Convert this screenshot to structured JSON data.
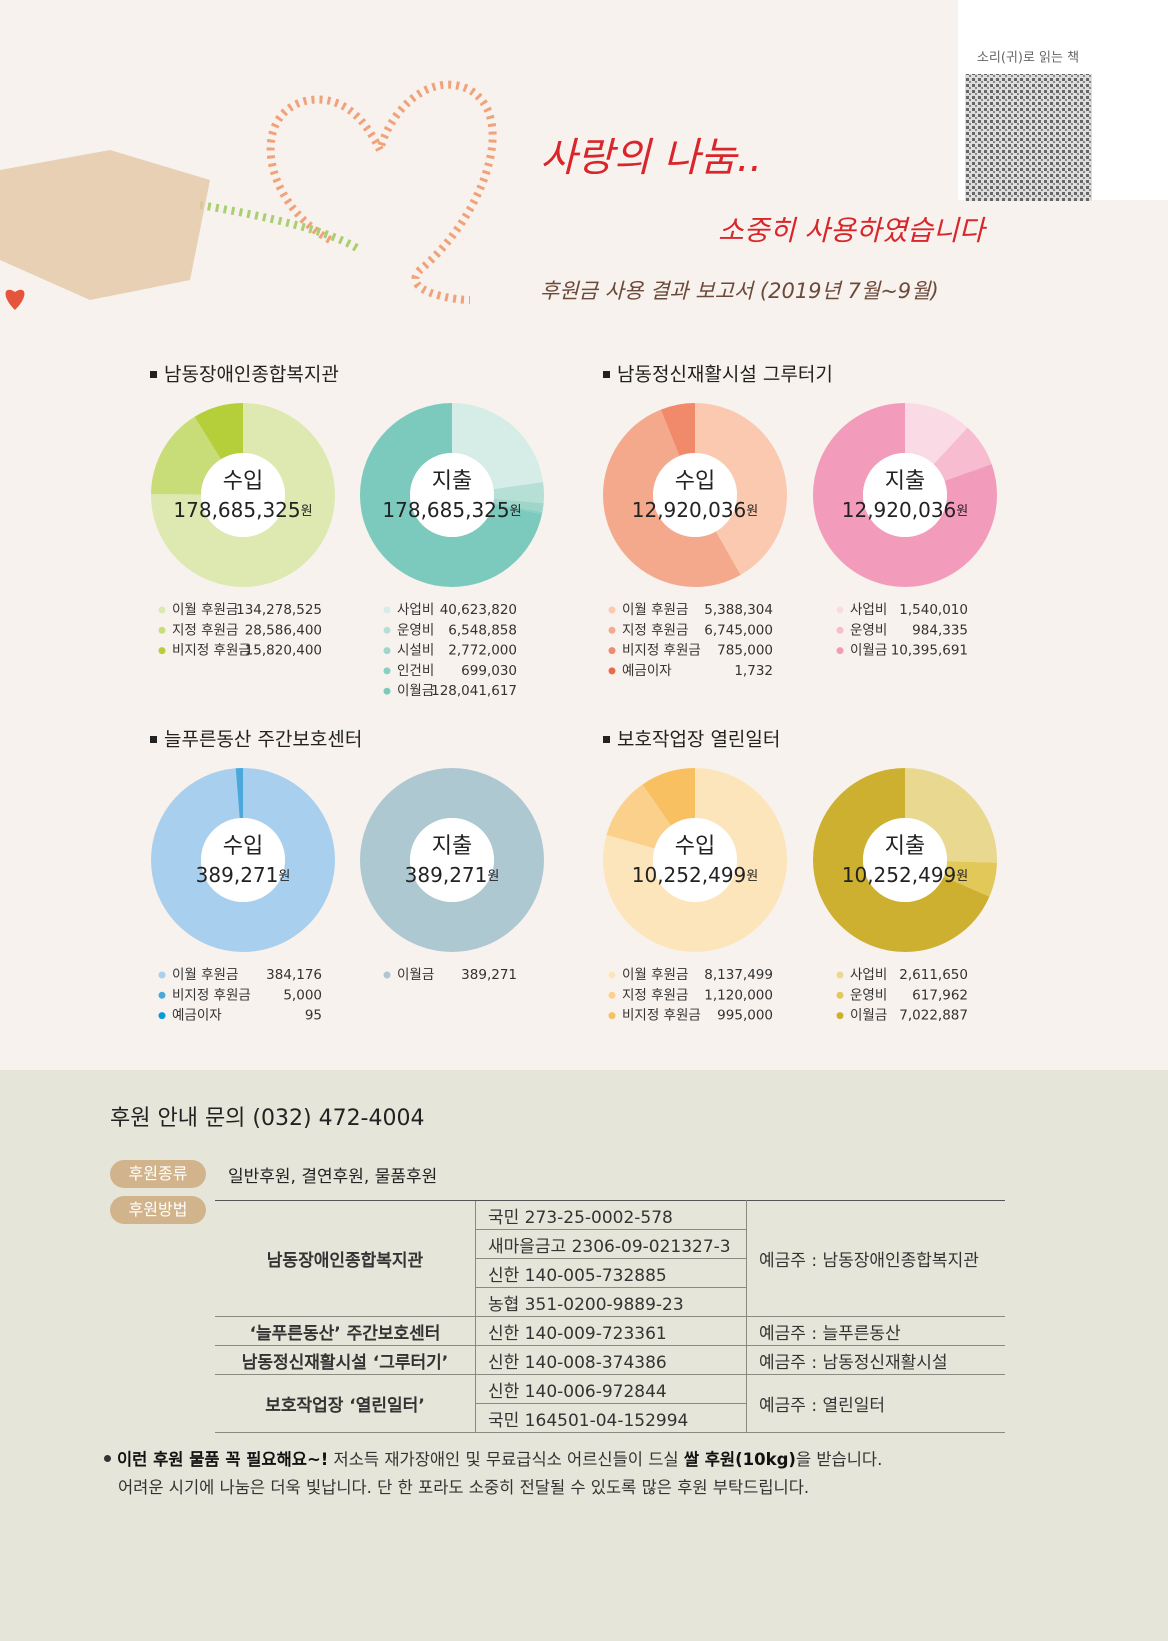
{
  "header": {
    "title": "사랑의 나눔..",
    "subtitle": "소중히 사용하였습니다",
    "report": "후원금 사용 결과 보고서 (2019년 7월~9월)",
    "qr_label": "소리(귀)로 읽는 책"
  },
  "sections": [
    {
      "title": "남동장애인종합복지관"
    },
    {
      "title": "남동정신재활시설 그루터기"
    },
    {
      "title": "늘푸른동산 주간보호센터"
    },
    {
      "title": "보호작업장 열린일터"
    }
  ],
  "chart_data": [
    {
      "type": "donut",
      "title": "수입",
      "total": "178,685,325",
      "unit": "원",
      "categories": [
        "이월 후원금",
        "지정 후원금",
        "비지정 후원금"
      ],
      "values": [
        134278525,
        28586400,
        15820400
      ],
      "value_labels": [
        "134,278,525",
        "28,586,400",
        "15,820,400"
      ],
      "colors": [
        "#dde9b0",
        "#c8dc78",
        "#b5cf3a"
      ]
    },
    {
      "type": "donut",
      "title": "지출",
      "total": "178,685,325",
      "unit": "원",
      "categories": [
        "사업비",
        "운영비",
        "시설비",
        "인건비",
        "이월금"
      ],
      "values": [
        40623820,
        6548858,
        2772000,
        699030,
        128041617
      ],
      "value_labels": [
        "40,623,820",
        "6,548,858",
        "2,772,000",
        "699,030",
        "128,041,617"
      ],
      "colors": [
        "#d5ede6",
        "#b6e0d6",
        "#9ed6ca",
        "#8ad0c3",
        "#7ccabd"
      ]
    },
    {
      "type": "donut",
      "title": "수입",
      "total": "12,920,036",
      "unit": "원",
      "categories": [
        "이월 후원금",
        "지정 후원금",
        "비지정 후원금",
        "예금이자"
      ],
      "values": [
        5388304,
        6745000,
        785000,
        1732
      ],
      "value_labels": [
        "5,388,304",
        "6,745,000",
        "785,000",
        "1,732"
      ],
      "colors": [
        "#fbc9b0",
        "#f4a98c",
        "#f18a6a",
        "#ea6b4a"
      ]
    },
    {
      "type": "donut",
      "title": "지출",
      "total": "12,920,036",
      "unit": "원",
      "categories": [
        "사업비",
        "운영비",
        "이월금"
      ],
      "values": [
        1540010,
        984335,
        10395691
      ],
      "value_labels": [
        "1,540,010",
        "984,335",
        "10,395,691"
      ],
      "colors": [
        "#fadbe5",
        "#f7bcd0",
        "#f39bbb"
      ]
    },
    {
      "type": "donut",
      "title": "수입",
      "total": "389,271",
      "unit": "원",
      "categories": [
        "이월 후원금",
        "비지정 후원금",
        "예금이자"
      ],
      "values": [
        384176,
        5000,
        95
      ],
      "value_labels": [
        "384,176",
        "5,000",
        "95"
      ],
      "colors": [
        "#a8d0ee",
        "#4aa8db",
        "#0a9ad8"
      ]
    },
    {
      "type": "donut",
      "title": "지출",
      "total": "389,271",
      "unit": "원",
      "categories": [
        "이월금"
      ],
      "values": [
        389271
      ],
      "value_labels": [
        "389,271"
      ],
      "colors": [
        "#aec8d2"
      ]
    },
    {
      "type": "donut",
      "title": "수입",
      "total": "10,252,499",
      "unit": "원",
      "categories": [
        "이월 후원금",
        "지정 후원금",
        "비지정 후원금"
      ],
      "values": [
        8137499,
        1120000,
        995000
      ],
      "value_labels": [
        "8,137,499",
        "1,120,000",
        "995,000"
      ],
      "colors": [
        "#fde5bb",
        "#fbd08a",
        "#f8c060"
      ]
    },
    {
      "type": "donut",
      "title": "지출",
      "total": "10,252,499",
      "unit": "원",
      "categories": [
        "사업비",
        "운영비",
        "이월금"
      ],
      "values": [
        2611650,
        617962,
        7022887
      ],
      "value_labels": [
        "2,611,650",
        "617,962",
        "7,022,887"
      ],
      "colors": [
        "#e8d890",
        "#e2c858",
        "#cdb030"
      ]
    }
  ],
  "support": {
    "contact": "후원 안내 문의 (032) 472-4004",
    "kinds_label": "후원종류",
    "kinds": "일반후원, 결연후원, 물품후원",
    "method_label": "후원방법",
    "rows": [
      {
        "org": "남동장애인종합복지관",
        "accounts": [
          "국민 273-25-0002-578",
          "새마을금고 2306-09-021327-3",
          "신한 140-005-732885",
          "농협 351-0200-9889-23"
        ],
        "holder": "예금주 : 남동장애인종합복지관"
      },
      {
        "org": "‘늘푸른동산’ 주간보호센터",
        "accounts": [
          "신한 140-009-723361"
        ],
        "holder": "예금주 : 늘푸른동산"
      },
      {
        "org": "남동정신재활시설 ‘그루터기’",
        "accounts": [
          "신한 140-008-374386"
        ],
        "holder": "예금주 : 남동정신재활시설"
      },
      {
        "org": "보호작업장 ‘열린일터’",
        "accounts": [
          "신한 140-006-972844",
          "국민 164501-04-152994"
        ],
        "holder": "예금주 : 열린일터"
      }
    ],
    "note": {
      "parts": [
        {
          "text": "이런 후원 물품 꼭 필요해요~!",
          "bold": true
        },
        {
          "text": " 저소득 재가장애인 및 무료급식소 어르신들이 드실 ",
          "bold": false
        },
        {
          "text": "쌀 후원(10kg)",
          "bold": true
        },
        {
          "text": "을 받습니다.",
          "bold": false
        }
      ],
      "line2": "어려운 시기에 나눔은 더욱 빛납니다. 단 한 포라도 소중히 전달될 수 있도록 많은 후원 부탁드립니다."
    }
  }
}
